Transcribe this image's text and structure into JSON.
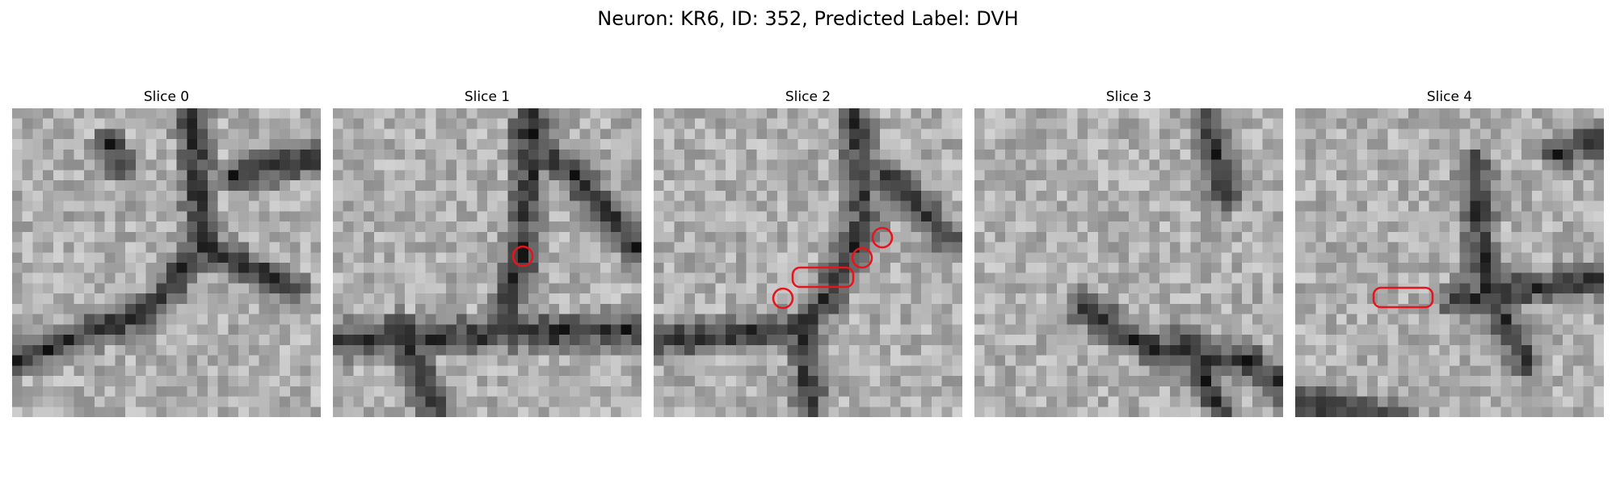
{
  "figure": {
    "title": "Neuron: KR6, ID: 352, Predicted Label: DVH"
  },
  "panels": [
    {
      "title": "Slice 0",
      "seed": 11,
      "markers": []
    },
    {
      "title": "Slice 1",
      "seed": 23,
      "markers": [
        "ring"
      ]
    },
    {
      "title": "Slice 2",
      "seed": 37,
      "markers": [
        "ring",
        "capsule",
        "ring",
        "ring"
      ]
    },
    {
      "title": "Slice 3",
      "seed": 41,
      "markers": []
    },
    {
      "title": "Slice 4",
      "seed": 53,
      "markers": [
        "capsule"
      ]
    }
  ],
  "colors": {
    "marker": "#e8141c",
    "colormap": "gray"
  }
}
